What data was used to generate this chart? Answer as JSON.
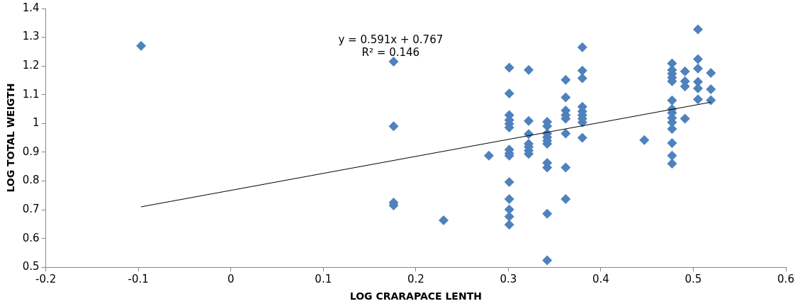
{
  "chart_data": {
    "type": "scatter",
    "xlabel": "LOG CRARAPACE LENTH",
    "ylabel": "LOG TOTAL WEIGTH",
    "annotations": [
      "y = 0.591x + 0.767",
      "R² = 0.146"
    ],
    "xlim": [
      -0.2,
      0.6
    ],
    "xticks": [
      -0.2,
      -0.1,
      0,
      0.1,
      0.2,
      0.3,
      0.4,
      0.5,
      0.6
    ],
    "ylim": [
      0.5,
      1.4
    ],
    "yticks": [
      0.5,
      0.6,
      0.7,
      0.8,
      0.9,
      1,
      1.1,
      1.2,
      1.3,
      1.4
    ],
    "grid": false,
    "legend": false,
    "marker": "diamond",
    "series": [
      {
        "color": "#4f81bd",
        "x": [
          -0.097,
          0.176,
          0.176,
          0.176,
          0.176,
          0.23,
          0.279,
          0.301,
          0.301,
          0.301,
          0.301,
          0.301,
          0.301,
          0.301,
          0.301,
          0.301,
          0.301,
          0.301,
          0.301,
          0.301,
          0.301,
          0.322,
          0.322,
          0.322,
          0.322,
          0.322,
          0.322,
          0.322,
          0.342,
          0.342,
          0.342,
          0.342,
          0.342,
          0.342,
          0.342,
          0.342,
          0.342,
          0.342,
          0.362,
          0.362,
          0.362,
          0.362,
          0.362,
          0.362,
          0.362,
          0.362,
          0.38,
          0.38,
          0.38,
          0.38,
          0.38,
          0.38,
          0.38,
          0.38,
          0.38,
          0.447,
          0.477,
          0.477,
          0.477,
          0.477,
          0.477,
          0.477,
          0.477,
          0.477,
          0.477,
          0.477,
          0.477,
          0.477,
          0.477,
          0.477,
          0.491,
          0.491,
          0.491,
          0.491,
          0.505,
          0.505,
          0.505,
          0.505,
          0.505,
          0.505,
          0.519,
          0.519,
          0.519
        ],
        "values": [
          1.27,
          1.215,
          0.99,
          0.725,
          0.715,
          0.663,
          0.888,
          1.194,
          1.104,
          1.029,
          1.012,
          0.999,
          0.986,
          0.909,
          0.896,
          0.888,
          0.796,
          0.737,
          0.701,
          0.676,
          0.648,
          1.186,
          1.009,
          0.963,
          0.929,
          0.919,
          0.906,
          0.894,
          1.006,
          0.991,
          0.965,
          0.952,
          0.94,
          0.929,
          0.863,
          0.847,
          0.686,
          0.524,
          1.152,
          1.091,
          1.045,
          1.029,
          1.017,
          0.965,
          0.847,
          0.737,
          1.265,
          1.184,
          1.157,
          1.058,
          1.042,
          1.029,
          1.017,
          1.004,
          0.95,
          0.942,
          1.209,
          1.186,
          1.173,
          1.16,
          1.147,
          1.08,
          1.05,
          1.037,
          1.019,
          1.004,
          0.981,
          0.932,
          0.888,
          0.86,
          1.181,
          1.147,
          1.129,
          1.017,
          1.327,
          1.224,
          1.191,
          1.145,
          1.122,
          1.084,
          1.176,
          1.119,
          1.081
        ]
      },
      {
        "type": "line",
        "color": "#000000",
        "x": [
          -0.097,
          0.519
        ],
        "values": [
          0.71,
          1.074
        ],
        "marker": "none"
      }
    ]
  }
}
